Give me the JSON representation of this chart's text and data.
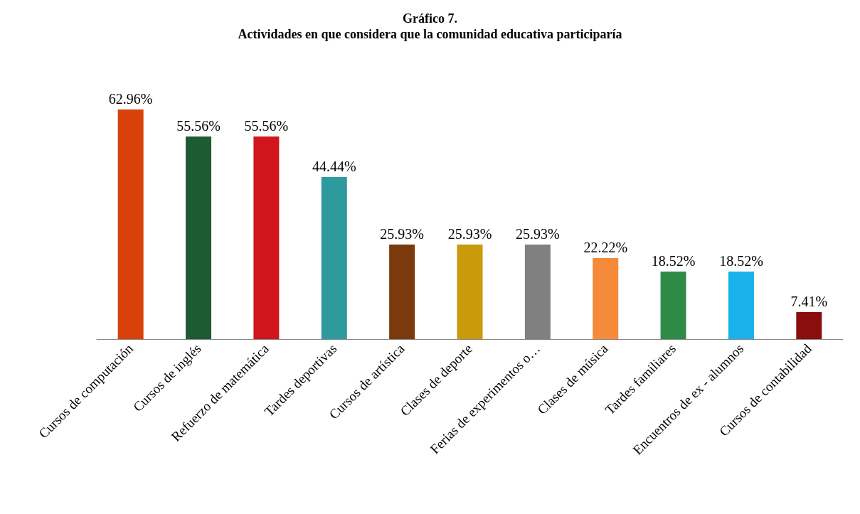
{
  "chart_data": {
    "type": "bar",
    "title": "Gráfico 7.",
    "subtitle": "Actividades en que considera que la comunidad educativa participaría",
    "categories": [
      "Cursos de computación",
      "Cursos de inglés",
      "Refuerzo de matemática",
      "Tardes deportivas",
      "Cursos de artística",
      "Clases de deporte",
      "Ferias de experimentos o…",
      "Clases de música",
      "Tardes familiares",
      "Encuentros de ex - alumnos",
      "Cursos de contabilidad"
    ],
    "values": [
      62.96,
      55.56,
      55.56,
      44.44,
      25.93,
      25.93,
      25.93,
      22.22,
      18.52,
      18.52,
      7.41
    ],
    "value_labels": [
      "62.96%",
      "55.56%",
      "55.56%",
      "44.44%",
      "25.93%",
      "25.93%",
      "25.93%",
      "22.22%",
      "18.52%",
      "18.52%",
      "7.41%"
    ],
    "colors": [
      "#d9410b",
      "#1e5a32",
      "#d0161c",
      "#2f9a9e",
      "#7a3a0c",
      "#c99a0b",
      "#808080",
      "#f58a3a",
      "#2e8b46",
      "#1ab0ea",
      "#8b0e0e"
    ],
    "grid": false
  }
}
